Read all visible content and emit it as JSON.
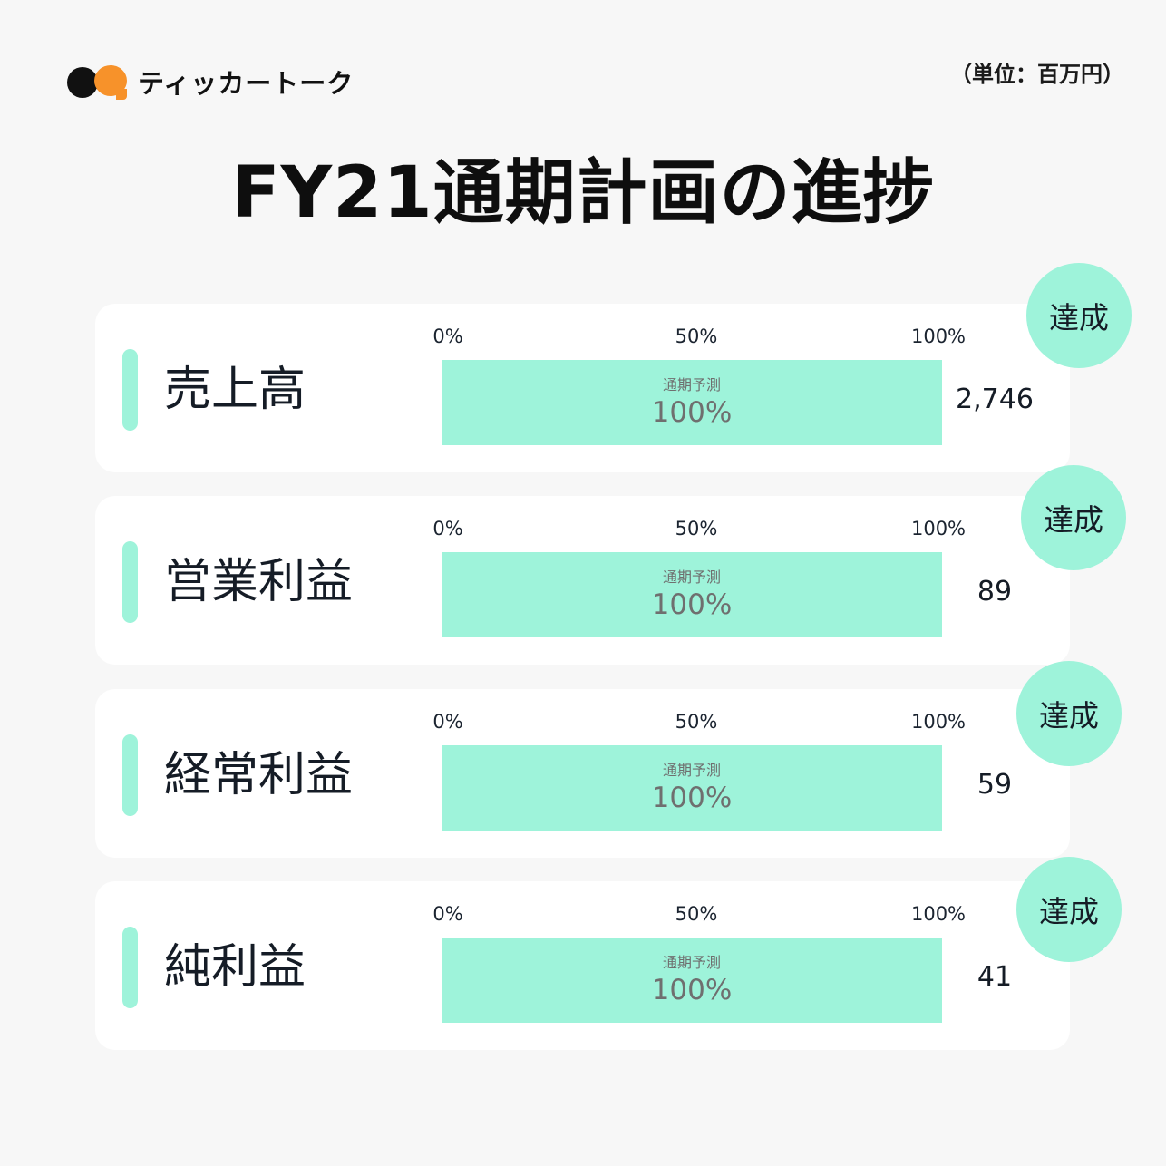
{
  "brand": {
    "name": "ティッカートーク"
  },
  "unit": "（単位：百万円）",
  "title": "FY21通期計画の進捗",
  "chart_data": {
    "type": "bar",
    "title": "FY21通期計画の進捗",
    "unit": "（単位：百万円）",
    "axis_ticks": [
      "0%",
      "50%",
      "100%"
    ],
    "xlim": [
      0,
      100
    ],
    "bar_caption": "通期予測",
    "categories": [
      "売上高",
      "営業利益",
      "経常利益",
      "純利益"
    ],
    "progress_percent": [
      100,
      100,
      100,
      100
    ],
    "progress_labels": [
      "100%",
      "100%",
      "100%",
      "100%"
    ],
    "values": [
      "2,746",
      "89",
      "59",
      "41"
    ],
    "status": [
      "達成",
      "達成",
      "達成",
      "達成"
    ]
  },
  "colors": {
    "accent": "#9ef3da",
    "brand_orange": "#f7922a",
    "brand_black": "#111111",
    "background": "#f7f7f7",
    "card": "#ffffff"
  }
}
